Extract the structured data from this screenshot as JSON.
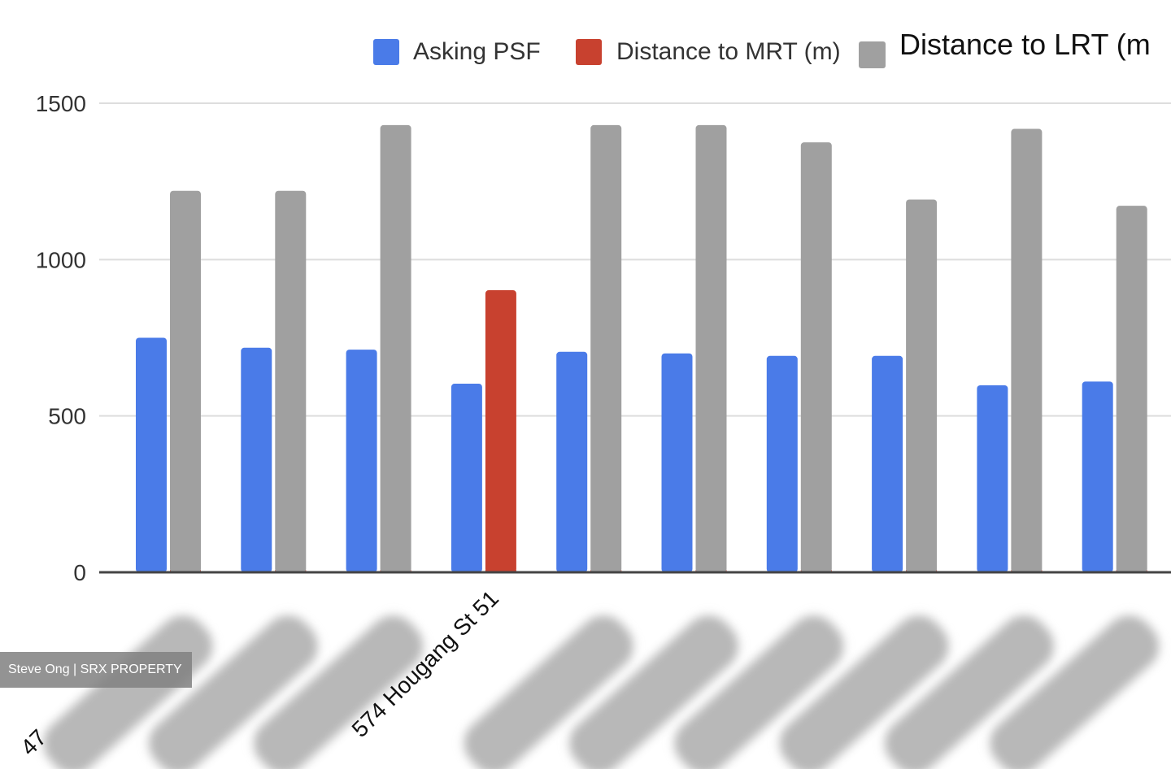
{
  "chart_data": {
    "type": "bar",
    "series": [
      {
        "name": "Asking PSF",
        "color": "#4a7be8",
        "values": [
          750,
          718,
          712,
          603,
          705,
          700,
          692,
          692,
          598,
          610
        ]
      },
      {
        "name": "Distance to MRT (m)",
        "color": "#c8412f",
        "values": [
          0,
          0,
          0,
          902,
          0,
          0,
          0,
          0,
          0,
          0
        ]
      },
      {
        "name": "Distance to LRT (m",
        "color": "#a0a0a0",
        "values": [
          1220,
          1220,
          1430,
          0,
          1430,
          1430,
          1375,
          1192,
          1418,
          1172
        ]
      }
    ],
    "categories": [
      "",
      "",
      "",
      "574 Hougang St 51",
      "",
      "",
      "",
      "",
      "",
      ""
    ],
    "category_label_partial": [
      "47",
      "",
      "",
      "",
      "",
      "",
      "",
      "",
      "",
      ""
    ],
    "yticks": [
      "0",
      "500",
      "1000",
      "1500"
    ],
    "ylim": [
      0,
      1500
    ],
    "grid": true,
    "legend_position": "top"
  },
  "watermark": {
    "text": "Steve Ong | SRX PROPERTY"
  }
}
